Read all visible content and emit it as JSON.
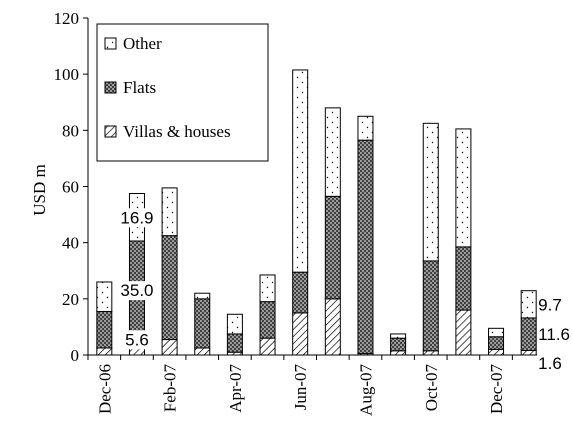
{
  "chart_data": {
    "type": "bar",
    "stacked": true,
    "ylabel": "USD m",
    "xlabel": "",
    "ylim": [
      0,
      120
    ],
    "yticks": [
      0,
      20,
      40,
      60,
      80,
      100,
      120
    ],
    "grid": false,
    "legend_position": "top-left",
    "categories": [
      "Dec-06",
      "Jan-07",
      "Feb-07",
      "Mar-07",
      "Apr-07",
      "May-07",
      "Jun-07",
      "Jul-07",
      "Aug-07",
      "Sep-07",
      "Oct-07",
      "Nov-07",
      "Dec-07",
      "Jan-08"
    ],
    "x_tick_labels": [
      "Dec-06",
      "",
      "Feb-07",
      "",
      "Apr-07",
      "",
      "Jun-07",
      "",
      "Aug-07",
      "",
      "Oct-07",
      "",
      "Dec-07",
      ""
    ],
    "series": [
      {
        "name": "Villas & houses",
        "pattern": "diagonal-hatch",
        "values": [
          2.5,
          5.6,
          5.5,
          2.5,
          1.0,
          6.0,
          15.0,
          20.0,
          0.5,
          1.5,
          1.5,
          16.0,
          2.0,
          1.6
        ]
      },
      {
        "name": "Flats",
        "pattern": "crosshatch",
        "values": [
          13.0,
          35.0,
          37.0,
          17.5,
          6.5,
          13.0,
          14.5,
          36.5,
          76.0,
          4.5,
          32.0,
          22.5,
          4.5,
          11.6
        ]
      },
      {
        "name": "Other",
        "pattern": "dotted",
        "values": [
          10.5,
          16.9,
          17.0,
          2.0,
          7.0,
          9.5,
          72.0,
          31.5,
          8.5,
          1.5,
          49.0,
          42.0,
          3.0,
          9.7
        ]
      }
    ],
    "data_labels": [
      {
        "category": "Jan-07",
        "series": "Other",
        "text": "16.9"
      },
      {
        "category": "Jan-07",
        "series": "Flats",
        "text": "35.0"
      },
      {
        "category": "Jan-07",
        "series": "Villas & houses",
        "text": "5.6"
      },
      {
        "category": "Jan-08",
        "series": "Other",
        "text": "9.7"
      },
      {
        "category": "Jan-08",
        "series": "Flats",
        "text": "11.6"
      },
      {
        "category": "Jan-08",
        "series": "Villas & houses",
        "text": "1.6"
      }
    ]
  }
}
